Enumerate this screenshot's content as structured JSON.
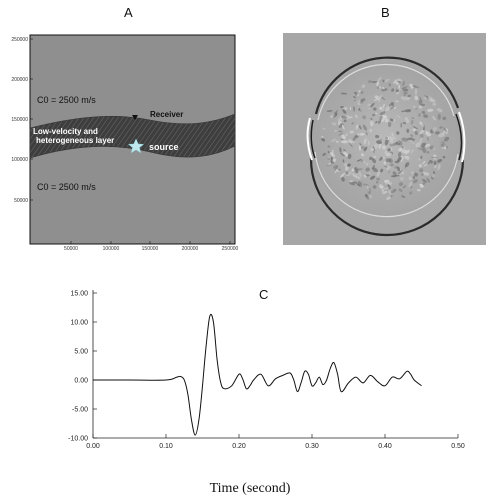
{
  "panels": {
    "a_label": "A",
    "b_label": "B",
    "c_label": "C"
  },
  "panel_a": {
    "top_velocity": "C0 = 2500 m/s",
    "bottom_velocity": "C0 = 2500 m/s",
    "layer_label_line1": "Low-velocity and",
    "layer_label_line2": "heterogeneous layer",
    "receiver_label": "Receiver",
    "source_label": "source",
    "y_ticks": [
      "250000",
      "200000",
      "150000",
      "100000",
      "50000"
    ],
    "x_ticks": [
      "50000",
      "100000",
      "150000",
      "200000",
      "250000"
    ]
  },
  "chart_data": {
    "type": "line",
    "title": "C",
    "xlabel": "Time (second)",
    "ylabel": "",
    "xlim": [
      0.0,
      0.5
    ],
    "ylim": [
      -10.0,
      15.0
    ],
    "x_ticks": [
      "0.00",
      "0.10",
      "0.20",
      "0.30",
      "0.40",
      "0.50"
    ],
    "y_ticks": [
      "15.00",
      "10.00",
      "5.00",
      "0.00",
      "-5.00",
      "-10.00"
    ],
    "grid": false,
    "series": [
      {
        "x": [
          0.0,
          0.05,
          0.1,
          0.115,
          0.12,
          0.125,
          0.13,
          0.135,
          0.14,
          0.145,
          0.15,
          0.155,
          0.16,
          0.165,
          0.17,
          0.175,
          0.18,
          0.19,
          0.2,
          0.205,
          0.21,
          0.215,
          0.22,
          0.23,
          0.24,
          0.25,
          0.26,
          0.27,
          0.275,
          0.28,
          0.285,
          0.29,
          0.295,
          0.3,
          0.305,
          0.31,
          0.315,
          0.32,
          0.325,
          0.33,
          0.335,
          0.34,
          0.35,
          0.36,
          0.37,
          0.38,
          0.39,
          0.4,
          0.41,
          0.42,
          0.43,
          0.435,
          0.44,
          0.45
        ],
        "y": [
          0.0,
          0.0,
          0.0,
          0.5,
          0.6,
          0.0,
          -2.5,
          -7.0,
          -9.5,
          -7.0,
          -1.0,
          6.0,
          11.0,
          10.0,
          3.5,
          -0.5,
          -1.5,
          -1.0,
          1.0,
          0.2,
          -1.5,
          -1.0,
          0.0,
          1.0,
          -1.0,
          0.2,
          0.8,
          1.2,
          0.0,
          -2.0,
          -0.5,
          1.5,
          1.0,
          -1.0,
          -0.5,
          0.5,
          -0.8,
          0.0,
          2.0,
          3.0,
          1.0,
          -2.0,
          -0.5,
          0.5,
          -0.5,
          0.8,
          -0.3,
          -1.0,
          0.5,
          0.2,
          1.5,
          1.0,
          0.0,
          -1.0
        ]
      }
    ]
  },
  "caption": "Time (second)"
}
